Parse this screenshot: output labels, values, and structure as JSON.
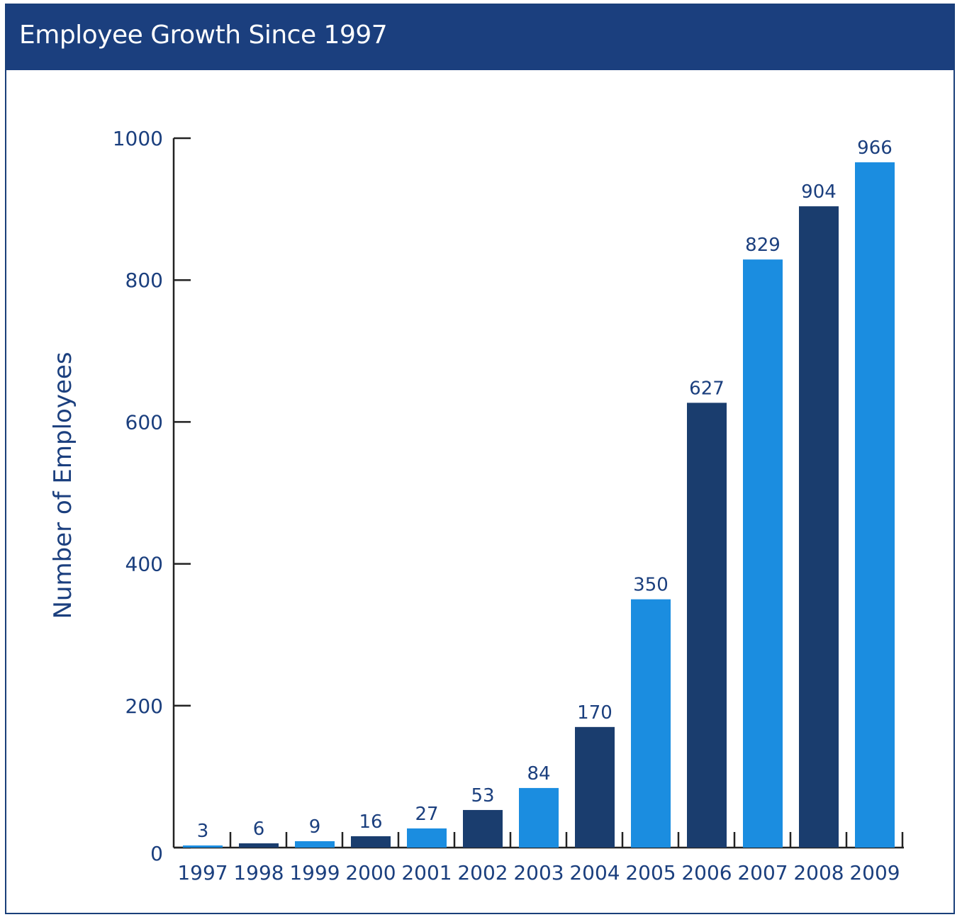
{
  "title": "Employee Growth Since 1997",
  "colors": {
    "header": "#1b3f7e",
    "dark_bar": "#1a3d6e",
    "light_bar": "#1b8de0",
    "text": "#1b3f7e"
  },
  "chart_data": {
    "type": "bar",
    "title": "Employee Growth Since 1997",
    "xlabel": "",
    "ylabel": "Number of Employees",
    "ylim": [
      0,
      1000
    ],
    "yticks": [
      0,
      200,
      400,
      600,
      800,
      1000
    ],
    "grid": false,
    "categories": [
      "1997",
      "1998",
      "1999",
      "2000",
      "2001",
      "2002",
      "2003",
      "2004",
      "2005",
      "2006",
      "2007",
      "2008",
      "2009"
    ],
    "values": [
      3,
      6,
      9,
      16,
      27,
      53,
      84,
      170,
      350,
      627,
      829,
      904,
      966
    ],
    "bar_colors": [
      "light",
      "dark",
      "light",
      "dark",
      "light",
      "dark",
      "light",
      "dark",
      "light",
      "dark",
      "light",
      "dark",
      "light"
    ]
  }
}
